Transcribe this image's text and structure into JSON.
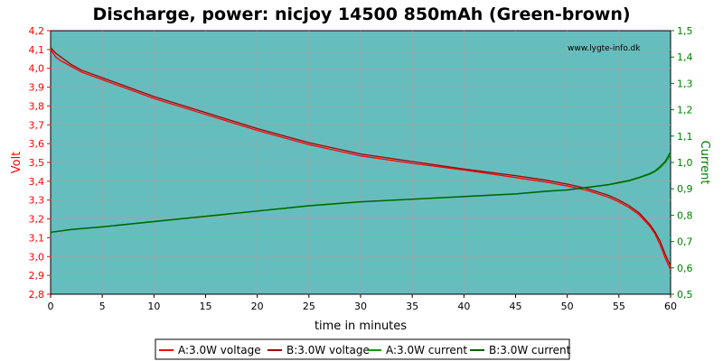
{
  "colors": {
    "plot_bg": "#66BDBE",
    "grid": "#A3A3A3",
    "left_axis": "#FF0000",
    "right_axis": "#008000",
    "series_a_voltage": "#FF0000",
    "series_b_voltage": "#A00000",
    "series_a_current": "#00A000",
    "series_b_current": "#006000"
  },
  "chart_data": {
    "type": "line",
    "title": "Discharge, power: nicjoy 14500 850mAh (Green-brown)",
    "watermark": "www.lygte-info.dk",
    "xlabel": "time in minutes",
    "ylabel_left": "Volt",
    "ylabel_right": "Current",
    "xlim": [
      0,
      60
    ],
    "ylim_left": [
      2.8,
      4.2
    ],
    "ylim_right": [
      0.5,
      1.5
    ],
    "x_ticks": [
      "0",
      "5",
      "10",
      "15",
      "20",
      "25",
      "30",
      "35",
      "40",
      "45",
      "50",
      "55",
      "60"
    ],
    "y_left_ticks": [
      "2,8",
      "2,9",
      "3,0",
      "3,1",
      "3,2",
      "3,3",
      "3,4",
      "3,5",
      "3,6",
      "3,7",
      "3,8",
      "3,9",
      "4,0",
      "4,1",
      "4,2"
    ],
    "y_right_ticks": [
      "0,5",
      "0,6",
      "0,7",
      "0,8",
      "0,9",
      "1,0",
      "1,1",
      "1,2",
      "1,3",
      "1,4",
      "1,5"
    ],
    "grid": true,
    "legend_position": "bottom",
    "series": [
      {
        "name": "A:3.0W voltage",
        "axis": "left",
        "color_key": "series_a_voltage",
        "x": [
          0,
          0.5,
          1,
          2,
          3,
          5,
          8,
          10,
          15,
          20,
          25,
          30,
          35,
          40,
          45,
          48,
          50,
          52,
          54,
          55,
          56,
          57,
          58,
          58.5,
          59,
          59.5,
          60
        ],
        "y": [
          4.1,
          4.06,
          4.04,
          4.01,
          3.98,
          3.94,
          3.88,
          3.84,
          3.755,
          3.67,
          3.595,
          3.535,
          3.495,
          3.46,
          3.42,
          3.395,
          3.375,
          3.35,
          3.315,
          3.29,
          3.26,
          3.22,
          3.16,
          3.12,
          3.06,
          2.99,
          2.93
        ]
      },
      {
        "name": "B:3.0W voltage",
        "axis": "left",
        "color_key": "series_b_voltage",
        "x": [
          0,
          0.5,
          1,
          2,
          3,
          5,
          8,
          10,
          15,
          20,
          25,
          30,
          35,
          40,
          45,
          48,
          50,
          52,
          54,
          55,
          56,
          57,
          58,
          58.5,
          59,
          59.5,
          60
        ],
        "y": [
          4.11,
          4.08,
          4.06,
          4.02,
          3.99,
          3.95,
          3.89,
          3.85,
          3.765,
          3.68,
          3.605,
          3.545,
          3.505,
          3.465,
          3.43,
          3.405,
          3.385,
          3.36,
          3.325,
          3.3,
          3.27,
          3.23,
          3.17,
          3.13,
          3.08,
          3.01,
          2.95
        ]
      },
      {
        "name": "A:3.0W current",
        "axis": "right",
        "color_key": "series_a_current",
        "x": [
          0,
          2,
          5,
          10,
          15,
          20,
          25,
          30,
          35,
          40,
          45,
          48,
          50,
          52,
          54,
          55,
          56,
          57,
          58,
          58.5,
          59,
          59.5,
          60
        ],
        "y": [
          0.735,
          0.745,
          0.755,
          0.775,
          0.795,
          0.815,
          0.835,
          0.85,
          0.86,
          0.87,
          0.88,
          0.89,
          0.895,
          0.905,
          0.915,
          0.922,
          0.93,
          0.942,
          0.955,
          0.965,
          0.98,
          1.0,
          1.03
        ]
      },
      {
        "name": "B:3.0W current",
        "axis": "right",
        "color_key": "series_b_current",
        "x": [
          0,
          2,
          5,
          10,
          15,
          20,
          25,
          30,
          35,
          40,
          45,
          48,
          50,
          52,
          54,
          55,
          56,
          57,
          58,
          58.5,
          59,
          59.5,
          60
        ],
        "y": [
          0.735,
          0.746,
          0.756,
          0.776,
          0.796,
          0.816,
          0.836,
          0.851,
          0.861,
          0.871,
          0.881,
          0.891,
          0.896,
          0.906,
          0.916,
          0.924,
          0.932,
          0.944,
          0.958,
          0.968,
          0.985,
          1.005,
          1.04
        ]
      }
    ]
  }
}
